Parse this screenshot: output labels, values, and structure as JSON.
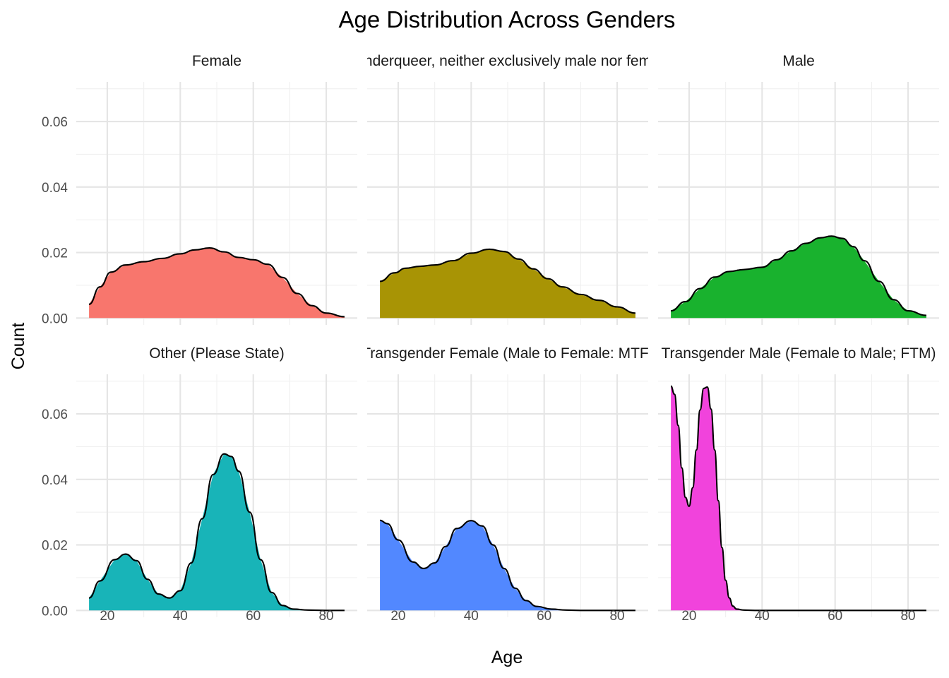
{
  "chart_data": {
    "type": "area",
    "title": "Age Distribution Across Genders",
    "xlabel": "Age",
    "ylabel": "Count",
    "xlim": [
      15,
      85
    ],
    "ylim": [
      0,
      0.07
    ],
    "x_ticks": [
      20,
      40,
      60,
      80
    ],
    "y_ticks": [
      0.0,
      0.02,
      0.04,
      0.06
    ],
    "y_tick_labels": [
      "0.00",
      "0.02",
      "0.04",
      "0.06"
    ],
    "grid": true,
    "legend": "none",
    "panels": [
      {
        "name": "Female",
        "color": "#F8766D",
        "x": [
          15,
          18,
          21,
          25,
          30,
          35,
          40,
          44,
          48,
          52,
          56,
          60,
          64,
          68,
          72,
          76,
          80,
          85
        ],
        "values": [
          0.0042,
          0.0095,
          0.014,
          0.0162,
          0.0172,
          0.0182,
          0.0196,
          0.0208,
          0.0214,
          0.0202,
          0.0185,
          0.0178,
          0.0164,
          0.0124,
          0.0075,
          0.0038,
          0.0015,
          0.0004
        ]
      },
      {
        "name": "Genderqueer, neither exclusively male nor female",
        "color": "#A89405",
        "x": [
          15,
          19,
          22,
          26,
          30,
          35,
          40,
          45,
          49,
          53,
          57,
          61,
          65,
          70,
          75,
          80,
          85
        ],
        "values": [
          0.0112,
          0.0138,
          0.0152,
          0.0158,
          0.0162,
          0.0175,
          0.0198,
          0.021,
          0.0203,
          0.018,
          0.015,
          0.012,
          0.0095,
          0.0072,
          0.0054,
          0.0034,
          0.0015
        ]
      },
      {
        "name": "Male",
        "color": "#19B22E",
        "x": [
          15,
          19,
          23,
          27,
          31,
          35,
          40,
          44,
          48,
          52,
          56,
          59,
          62,
          65,
          68,
          72,
          76,
          80,
          85
        ],
        "values": [
          0.0022,
          0.005,
          0.009,
          0.0125,
          0.0142,
          0.0148,
          0.0155,
          0.0178,
          0.0205,
          0.0228,
          0.0245,
          0.025,
          0.0243,
          0.0218,
          0.0175,
          0.0112,
          0.0056,
          0.0022,
          0.0008
        ]
      },
      {
        "name": "Other (Please State)",
        "color": "#18B4B8",
        "x": [
          15,
          18,
          22,
          25,
          28,
          31,
          34,
          37,
          40,
          43,
          46,
          49,
          52,
          54,
          56,
          59,
          62,
          65,
          68,
          71,
          75,
          80,
          85
        ],
        "values": [
          0.0038,
          0.009,
          0.0155,
          0.0172,
          0.0152,
          0.0095,
          0.005,
          0.0038,
          0.006,
          0.0145,
          0.028,
          0.0415,
          0.0478,
          0.047,
          0.0425,
          0.03,
          0.0155,
          0.0055,
          0.0015,
          0.0004,
          0.0001,
          0.0,
          0.0
        ]
      },
      {
        "name": "Transgender Female (Male to Female: MTF)",
        "color": "#5288FF",
        "x": [
          15,
          17,
          20,
          24,
          27,
          30,
          33,
          36,
          40,
          43,
          46,
          49,
          52,
          55,
          58,
          62,
          66,
          70,
          75,
          80,
          85
        ],
        "values": [
          0.0275,
          0.0265,
          0.0215,
          0.0148,
          0.0128,
          0.0145,
          0.0195,
          0.025,
          0.0274,
          0.0258,
          0.02,
          0.0128,
          0.0068,
          0.003,
          0.0012,
          0.0004,
          0.0001,
          0.0,
          0.0,
          0.0,
          0.0
        ]
      },
      {
        "name": "Transgender Male (Female to Male; FTM)",
        "color": "#F143DC",
        "x": [
          15,
          16,
          17,
          18,
          19,
          20,
          21,
          22,
          23,
          24,
          25,
          26,
          27,
          28,
          29,
          30,
          31,
          32,
          33,
          35,
          38,
          42,
          50,
          60,
          70,
          85
        ],
        "values": [
          0.0685,
          0.066,
          0.0565,
          0.0435,
          0.0345,
          0.0318,
          0.0375,
          0.049,
          0.0612,
          0.0678,
          0.0682,
          0.0615,
          0.049,
          0.0335,
          0.0192,
          0.0092,
          0.0038,
          0.0013,
          0.0004,
          0.0001,
          0.0,
          0.0,
          0.0,
          0.0,
          0.0,
          0.0
        ]
      }
    ]
  }
}
